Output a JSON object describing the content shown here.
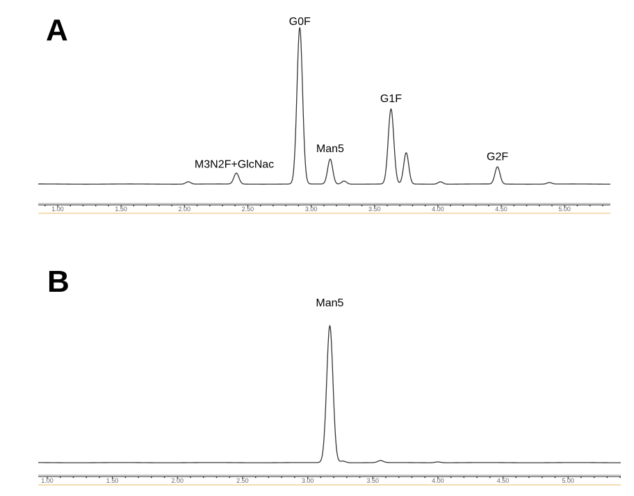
{
  "chart_data": [
    {
      "type": "line",
      "panel_label": "A",
      "xlim": [
        0.85,
        5.35
      ],
      "x_ticks": [
        "1.00",
        "1.50",
        "2.00",
        "2.50",
        "3.00",
        "3.50",
        "4.00",
        "4.50",
        "5.00"
      ],
      "y_unit": "relative intensity (tallest peak = 100)",
      "colors": {
        "trace": "#333333",
        "axis": "#555555",
        "axis_underline": "#e8b860"
      },
      "peaks": [
        {
          "rt": 2.03,
          "height": 1.5,
          "label": ""
        },
        {
          "rt": 2.41,
          "height": 7,
          "label": "M3N2F+GlcNac"
        },
        {
          "rt": 2.91,
          "height": 100,
          "label": "G0F"
        },
        {
          "rt": 3.15,
          "height": 16,
          "label": "Man5"
        },
        {
          "rt": 3.26,
          "height": 2,
          "label": ""
        },
        {
          "rt": 3.63,
          "height": 48,
          "label": "G1F"
        },
        {
          "rt": 3.75,
          "height": 20,
          "label": ""
        },
        {
          "rt": 4.02,
          "height": 1.5,
          "label": ""
        },
        {
          "rt": 4.47,
          "height": 11,
          "label": "G2F"
        },
        {
          "rt": 4.88,
          "height": 1,
          "label": ""
        }
      ]
    },
    {
      "type": "line",
      "panel_label": "B",
      "xlim": [
        0.8,
        5.45
      ],
      "x_ticks": [
        "1.00",
        "1.50",
        "2.00",
        "2.50",
        "3.00",
        "3.50",
        "4.00",
        "4.50",
        "5.00"
      ],
      "y_unit": "relative intensity (tallest peak = 100)",
      "colors": {
        "trace": "#333333",
        "axis": "#555555",
        "axis_underline": "#e8b860"
      },
      "peaks": [
        {
          "rt": 3.17,
          "height": 100,
          "label": "Man5"
        },
        {
          "rt": 3.27,
          "height": 1.2,
          "label": ""
        },
        {
          "rt": 3.56,
          "height": 1.5,
          "label": ""
        },
        {
          "rt": 4.0,
          "height": 0.6,
          "label": ""
        }
      ]
    }
  ]
}
